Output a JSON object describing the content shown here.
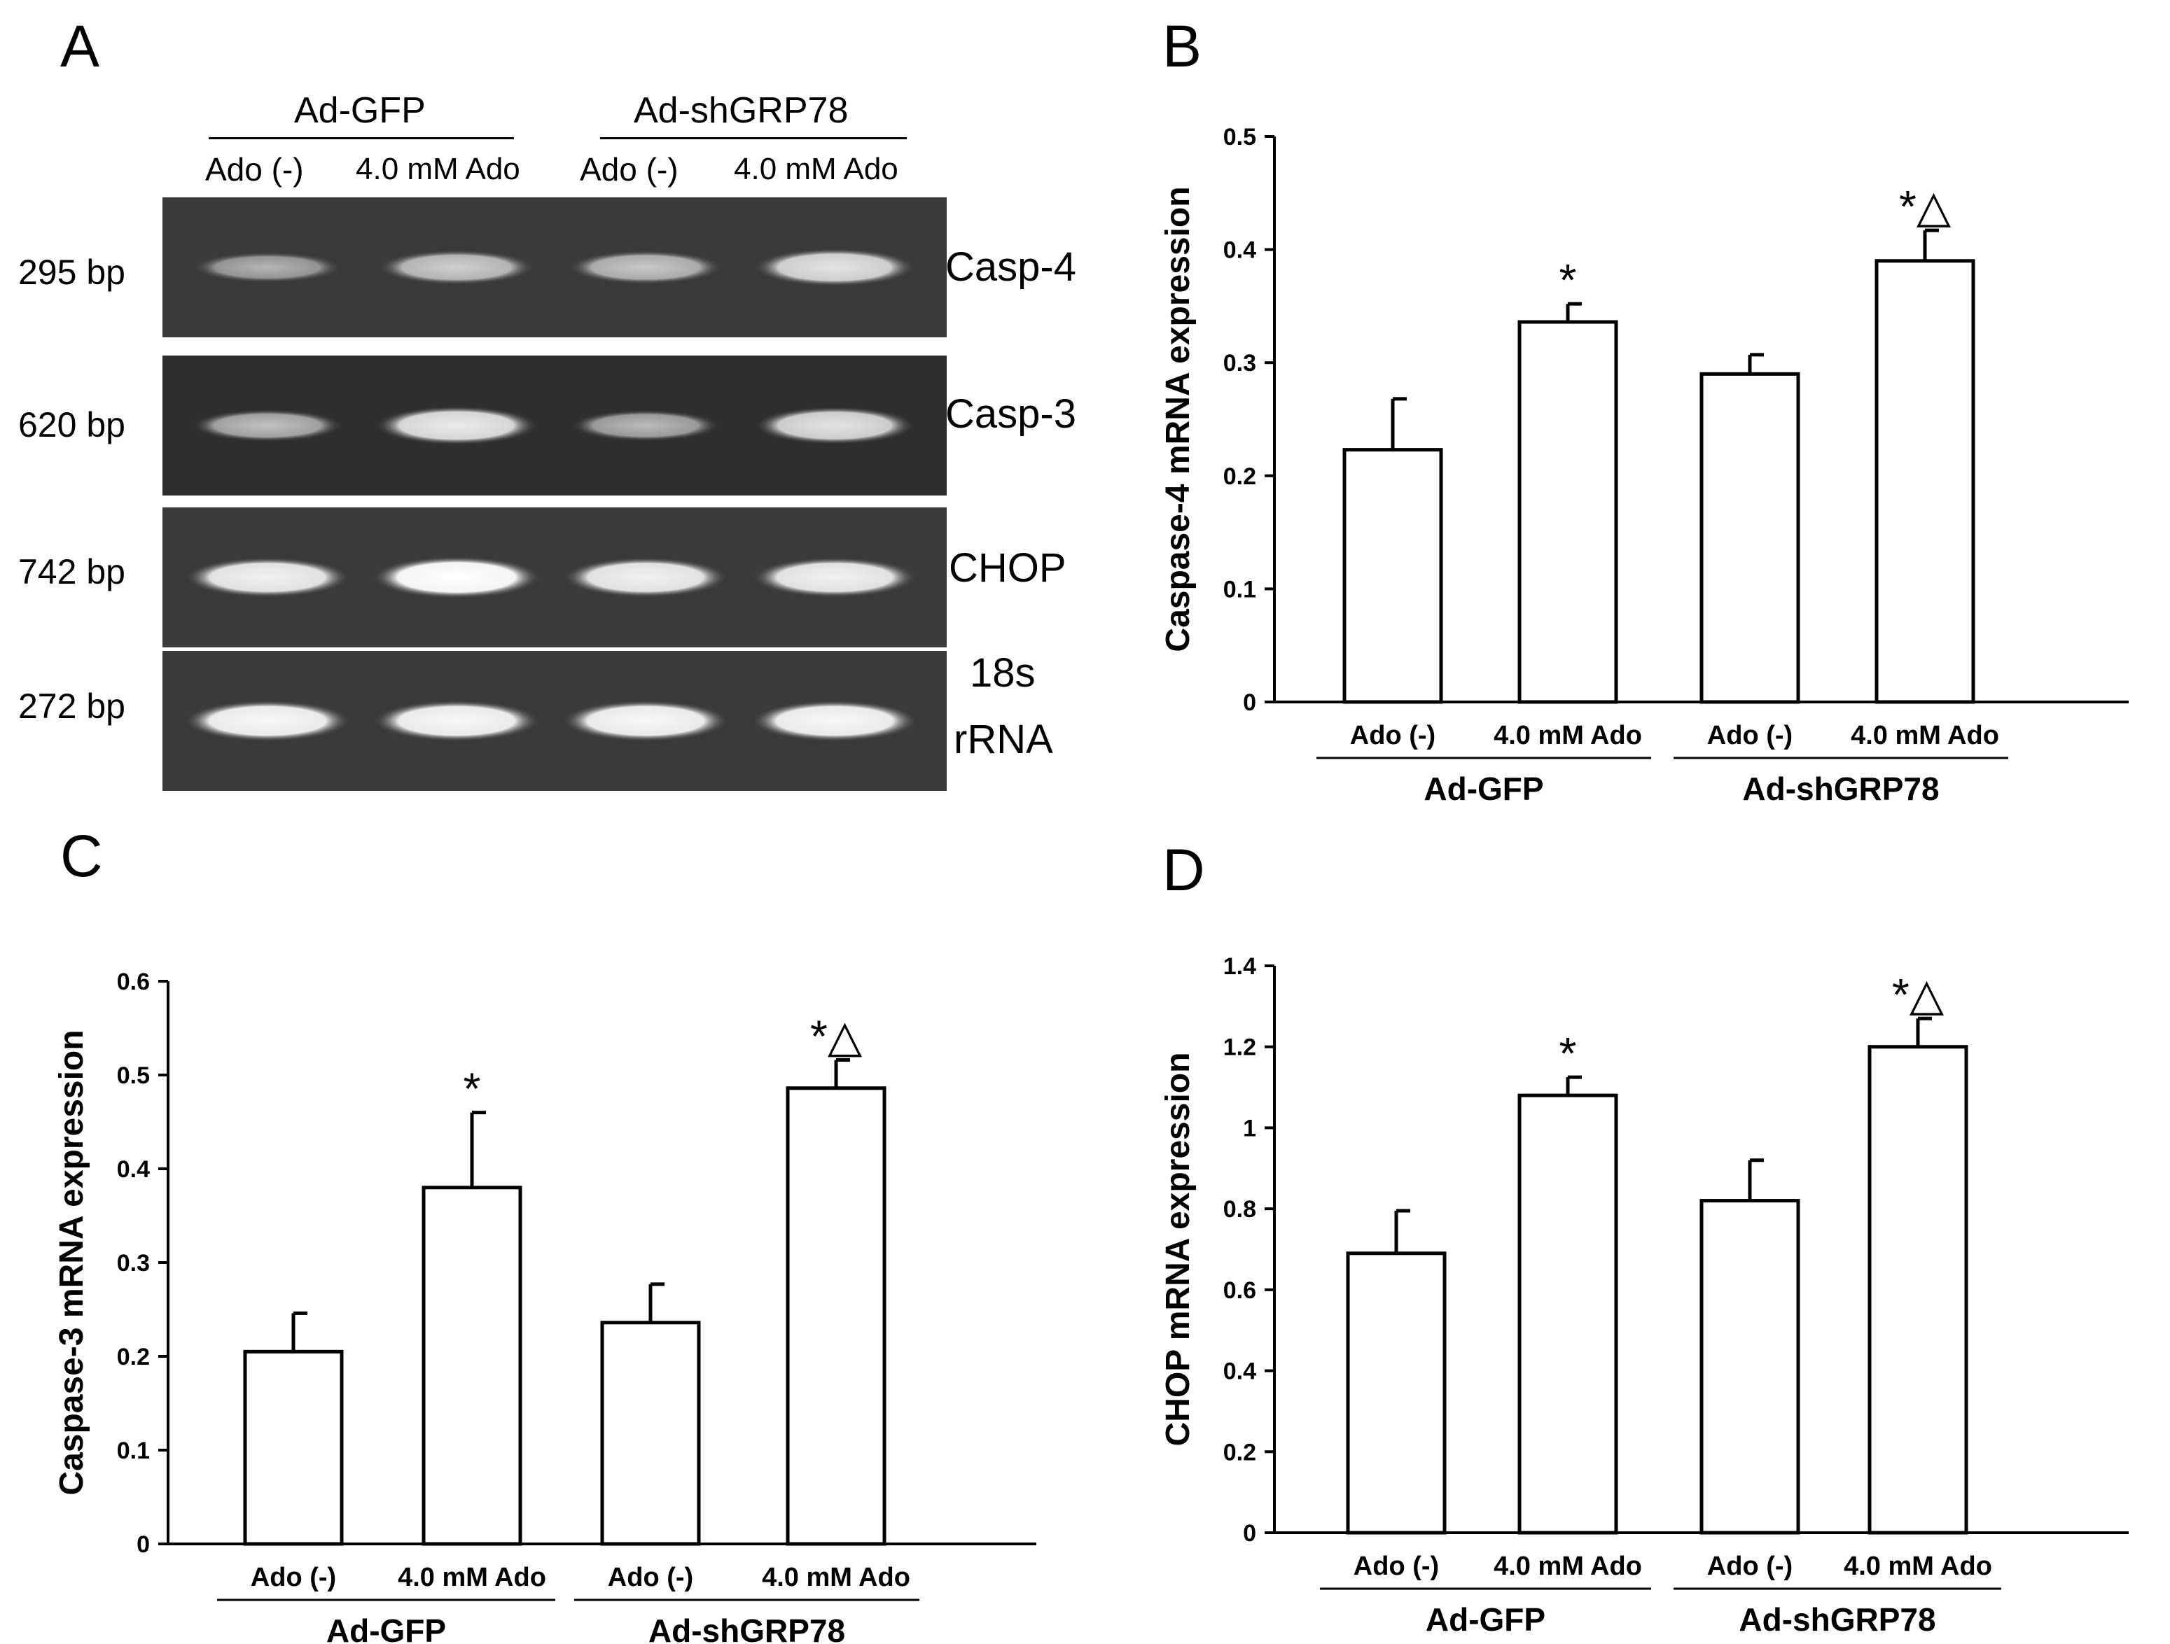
{
  "panels": {
    "a": "A",
    "b": "B",
    "c": "C",
    "d": "D"
  },
  "gel": {
    "groups": [
      "Ad-GFP",
      "Ad-shGRP78"
    ],
    "lanes": [
      "Ado (-)",
      "4.0 mM Ado",
      "Ado (-)",
      "4.0 mM Ado"
    ],
    "rows": [
      {
        "bp": "295 bp",
        "name": "Casp-4",
        "intensity": [
          0.45,
          0.65,
          0.6,
          0.8
        ]
      },
      {
        "bp": "620 bp",
        "name": "Casp-3",
        "intensity": [
          0.55,
          0.85,
          0.5,
          0.8
        ]
      },
      {
        "bp": "742 bp",
        "name": "CHOP",
        "intensity": [
          0.9,
          1.0,
          0.9,
          0.9
        ]
      },
      {
        "bp": "272 bp",
        "name_line1": "18s",
        "name_line2": "rRNA",
        "intensity": [
          0.95,
          0.95,
          0.95,
          0.95
        ]
      }
    ]
  },
  "chart_data": [
    {
      "id": "B",
      "type": "bar",
      "ylabel": "Caspase-4 mRNA expression",
      "ylim": [
        0,
        0.5
      ],
      "yticks": [
        "0",
        "0.1",
        "0.2",
        "0.3",
        "0.4",
        "0.5"
      ],
      "categories": [
        "Ado (-)",
        "4.0 mM Ado",
        "Ado (-)",
        "4.0 mM Ado"
      ],
      "groups": [
        "Ad-GFP",
        "Ad-shGRP78"
      ],
      "values": [
        0.223,
        0.336,
        0.29,
        0.39
      ],
      "errors": [
        0.045,
        0.016,
        0.017,
        0.027
      ],
      "annotations": [
        "",
        "*",
        "",
        "*△"
      ]
    },
    {
      "id": "C",
      "type": "bar",
      "ylabel": "Caspase-3 mRNA expression",
      "ylim": [
        0,
        0.6
      ],
      "yticks": [
        "0",
        "0.1",
        "0.2",
        "0.3",
        "0.4",
        "0.5",
        "0.6"
      ],
      "categories": [
        "Ado (-)",
        "4.0 mM Ado",
        "Ado (-)",
        "4.0 mM Ado"
      ],
      "groups": [
        "Ad-GFP",
        "Ad-shGRP78"
      ],
      "values": [
        0.205,
        0.38,
        0.236,
        0.486
      ],
      "errors": [
        0.041,
        0.08,
        0.041,
        0.03
      ],
      "annotations": [
        "",
        "*",
        "",
        "*△"
      ]
    },
    {
      "id": "D",
      "type": "bar",
      "ylabel": "CHOP mRNA expression",
      "ylim": [
        0,
        1.4
      ],
      "yticks": [
        "0",
        "0.2",
        "0.4",
        "0.6",
        "0.8",
        "1",
        "1.2",
        "1.4"
      ],
      "categories": [
        "Ado (-)",
        "4.0 mM Ado",
        "Ado (-)",
        "4.0 mM Ado"
      ],
      "groups": [
        "Ad-GFP",
        "Ad-shGRP78"
      ],
      "values": [
        0.69,
        1.08,
        0.82,
        1.2
      ],
      "errors": [
        0.105,
        0.045,
        0.1,
        0.07
      ],
      "annotations": [
        "",
        "*",
        "",
        "*△"
      ]
    }
  ]
}
